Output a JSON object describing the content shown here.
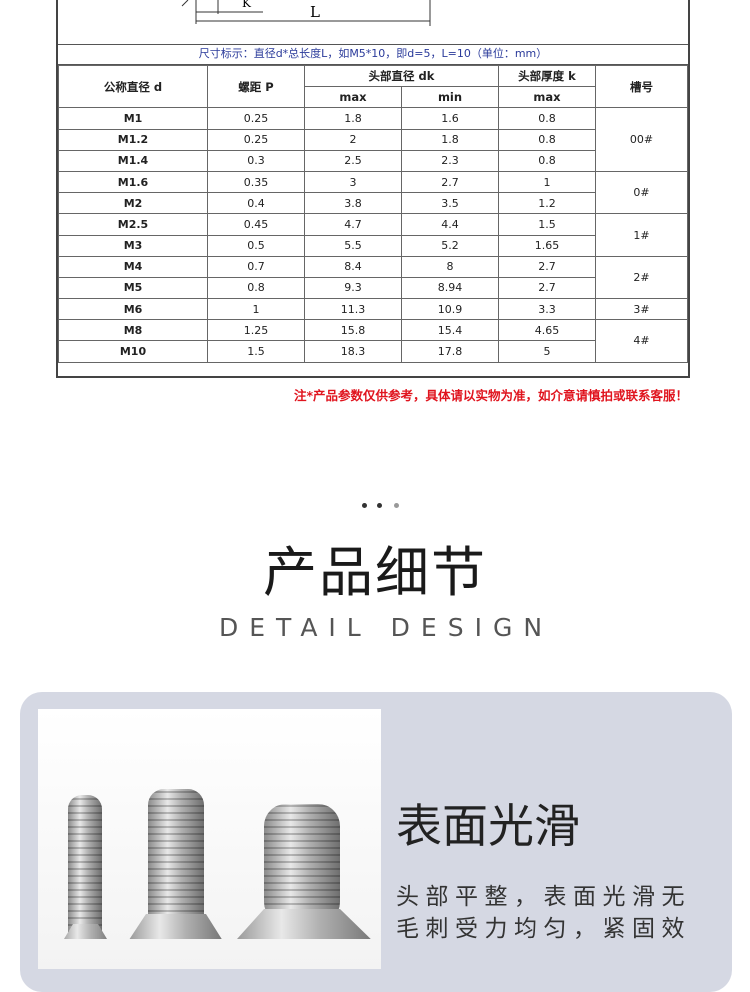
{
  "diagram": {
    "k_label": "K",
    "l_label": "L"
  },
  "caption": "尺寸标示：直径d*总长度L，如M5*10，即d=5，L=10（单位：mm）",
  "table": {
    "headers": {
      "d": "公称直径 d",
      "p": "螺距 P",
      "dk": "头部直径 dk",
      "k": "头部厚度 k",
      "slot": "槽号",
      "max": "max",
      "min": "min"
    },
    "rows": [
      {
        "d": "M1",
        "p": "0.25",
        "dk_max": "1.8",
        "dk_min": "1.6",
        "k_max": "0.8"
      },
      {
        "d": "M1.2",
        "p": "0.25",
        "dk_max": "2",
        "dk_min": "1.8",
        "k_max": "0.8"
      },
      {
        "d": "M1.4",
        "p": "0.3",
        "dk_max": "2.5",
        "dk_min": "2.3",
        "k_max": "0.8"
      },
      {
        "d": "M1.6",
        "p": "0.35",
        "dk_max": "3",
        "dk_min": "2.7",
        "k_max": "1"
      },
      {
        "d": "M2",
        "p": "0.4",
        "dk_max": "3.8",
        "dk_min": "3.5",
        "k_max": "1.2"
      },
      {
        "d": "M2.5",
        "p": "0.45",
        "dk_max": "4.7",
        "dk_min": "4.4",
        "k_max": "1.5"
      },
      {
        "d": "M3",
        "p": "0.5",
        "dk_max": "5.5",
        "dk_min": "5.2",
        "k_max": "1.65"
      },
      {
        "d": "M4",
        "p": "0.7",
        "dk_max": "8.4",
        "dk_min": "8",
        "k_max": "2.7"
      },
      {
        "d": "M5",
        "p": "0.8",
        "dk_max": "9.3",
        "dk_min": "8.94",
        "k_max": "2.7"
      },
      {
        "d": "M6",
        "p": "1",
        "dk_max": "11.3",
        "dk_min": "10.9",
        "k_max": "3.3"
      },
      {
        "d": "M8",
        "p": "1.25",
        "dk_max": "15.8",
        "dk_min": "15.4",
        "k_max": "4.65"
      },
      {
        "d": "M10",
        "p": "1.5",
        "dk_max": "18.3",
        "dk_min": "17.8",
        "k_max": "5"
      }
    ],
    "slots": [
      {
        "label": "00#",
        "rows": 3
      },
      {
        "label": "0#",
        "rows": 2
      },
      {
        "label": "1#",
        "rows": 2
      },
      {
        "label": "2#",
        "rows": 2
      },
      {
        "label": "3#",
        "rows": 1
      },
      {
        "label": "4#",
        "rows": 2
      }
    ]
  },
  "note": "注*产品参数仅供参考，具体请以实物为准，如介意请慎拍或联系客服！",
  "section": {
    "title": "产品细节",
    "subtitle": "DETAIL DESIGN"
  },
  "feature": {
    "title": "表面光滑",
    "lines": [
      "头部平整，表面光滑无",
      "毛刺受力均匀，紧固效"
    ]
  },
  "colors": {
    "note": "#e0141e",
    "caption": "#2a3a9a",
    "panel": "#d5d8e3"
  }
}
